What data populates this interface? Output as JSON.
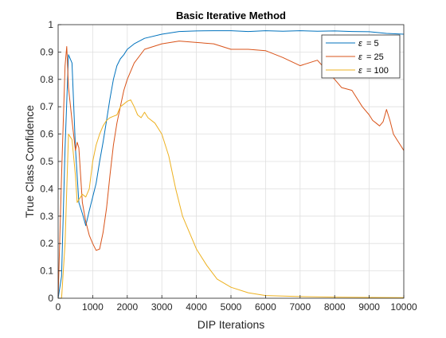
{
  "chart_data": {
    "type": "line",
    "title": "Basic Iterative Method",
    "xlabel": "DIP Iterations",
    "ylabel": "True Class Confidence",
    "xlim": [
      0,
      10000
    ],
    "ylim": [
      0,
      1
    ],
    "xticks": [
      0,
      1000,
      2000,
      3000,
      4000,
      5000,
      6000,
      7000,
      8000,
      9000,
      10000
    ],
    "yticks": [
      0,
      0.1,
      0.2,
      0.3,
      0.4,
      0.5,
      0.6,
      0.7,
      0.8,
      0.9,
      1
    ],
    "grid": true,
    "legend_position": "top-right",
    "series": [
      {
        "name": "ε = 5",
        "legend_symbol": "ε",
        "legend_value": "= 5",
        "color": "#0072BD",
        "x": [
          0,
          100,
          200,
          300,
          400,
          500,
          600,
          700,
          800,
          900,
          1000,
          1100,
          1200,
          1300,
          1400,
          1500,
          1600,
          1700,
          1800,
          1900,
          2000,
          2200,
          2500,
          3000,
          3500,
          4000,
          4500,
          5000,
          5500,
          6000,
          6500,
          7000,
          7500,
          8000,
          8500,
          9000,
          9500,
          10000
        ],
        "y": [
          0,
          0.08,
          0.55,
          0.89,
          0.86,
          0.55,
          0.35,
          0.31,
          0.265,
          0.32,
          0.37,
          0.42,
          0.5,
          0.57,
          0.65,
          0.73,
          0.8,
          0.85,
          0.875,
          0.89,
          0.91,
          0.93,
          0.95,
          0.965,
          0.975,
          0.977,
          0.978,
          0.978,
          0.975,
          0.978,
          0.976,
          0.978,
          0.976,
          0.977,
          0.975,
          0.974,
          0.968,
          0.965
        ]
      },
      {
        "name": "ε = 25",
        "legend_symbol": "ε",
        "legend_value": "= 25",
        "color": "#D95319",
        "x": [
          0,
          100,
          200,
          250,
          300,
          400,
          500,
          550,
          600,
          700,
          800,
          900,
          1000,
          1100,
          1200,
          1300,
          1400,
          1500,
          1600,
          1700,
          1800,
          1900,
          2000,
          2200,
          2500,
          3000,
          3500,
          4000,
          4500,
          5000,
          5500,
          6000,
          6500,
          7000,
          7500,
          8000,
          8200,
          8500,
          8800,
          9000,
          9100,
          9200,
          9300,
          9400,
          9500,
          9600,
          9700,
          9800,
          9900,
          10000
        ],
        "y": [
          0,
          0.45,
          0.85,
          0.92,
          0.77,
          0.65,
          0.54,
          0.57,
          0.55,
          0.35,
          0.28,
          0.23,
          0.2,
          0.175,
          0.18,
          0.24,
          0.33,
          0.45,
          0.56,
          0.64,
          0.7,
          0.76,
          0.8,
          0.86,
          0.91,
          0.93,
          0.94,
          0.935,
          0.93,
          0.91,
          0.91,
          0.905,
          0.88,
          0.85,
          0.87,
          0.8,
          0.77,
          0.76,
          0.7,
          0.67,
          0.65,
          0.64,
          0.63,
          0.645,
          0.69,
          0.65,
          0.6,
          0.58,
          0.56,
          0.54
        ]
      },
      {
        "name": "ε = 100",
        "legend_symbol": "ε",
        "legend_value": "= 100",
        "color": "#EDB120",
        "x": [
          0,
          100,
          200,
          300,
          400,
          500,
          550,
          600,
          700,
          800,
          900,
          1000,
          1100,
          1200,
          1300,
          1400,
          1500,
          1600,
          1700,
          1800,
          1900,
          2000,
          2100,
          2200,
          2300,
          2400,
          2500,
          2600,
          2800,
          3000,
          3200,
          3400,
          3600,
          3800,
          4000,
          4300,
          4600,
          5000,
          5500,
          6000,
          7000,
          8000,
          9000,
          10000
        ],
        "y": [
          0,
          0,
          0.2,
          0.6,
          0.58,
          0.45,
          0.35,
          0.36,
          0.38,
          0.37,
          0.4,
          0.5,
          0.56,
          0.6,
          0.63,
          0.65,
          0.66,
          0.665,
          0.67,
          0.7,
          0.71,
          0.72,
          0.725,
          0.7,
          0.67,
          0.66,
          0.68,
          0.66,
          0.64,
          0.6,
          0.52,
          0.4,
          0.3,
          0.24,
          0.18,
          0.12,
          0.07,
          0.04,
          0.02,
          0.01,
          0.006,
          0.004,
          0.003,
          0.002
        ]
      }
    ]
  },
  "colors": {
    "axis": "#262626",
    "grid": "#dfdfdf",
    "plot_background": "#ffffff"
  }
}
